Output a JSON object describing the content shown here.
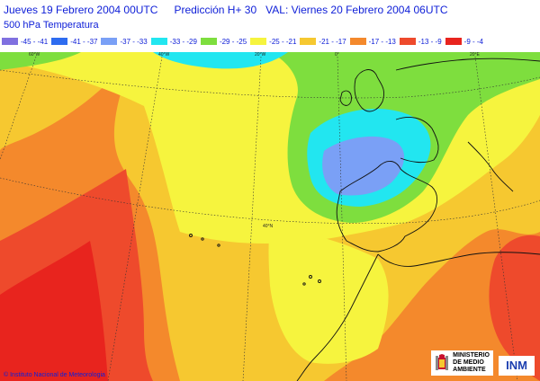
{
  "header": {
    "line1_left": "Jueves 19 Febrero 2004 00UTC",
    "line1_pred": "Predicción H+ 30",
    "line1_val": "VAL: Viernes 20 Febrero 2004 06UTC",
    "subtitle": "500  hPa Temperatura"
  },
  "legend": [
    {
      "label": "-45 - -41",
      "color": "#8070e0"
    },
    {
      "label": "-41 - -37",
      "color": "#2e6cf0"
    },
    {
      "label": "-37 - -33",
      "color": "#7aa0f6"
    },
    {
      "label": "-33 - -29",
      "color": "#22e6f0"
    },
    {
      "label": "-29 - -25",
      "color": "#7ede3e"
    },
    {
      "label": "-25 - -21",
      "color": "#f6f43e"
    },
    {
      "label": "-21 - -17",
      "color": "#f6c830"
    },
    {
      "label": "-17 - -13",
      "color": "#f4892c"
    },
    {
      "label": "-13 - -9",
      "color": "#ee4a2c"
    },
    {
      "label": "-9 - -4",
      "color": "#e8241e"
    }
  ],
  "map": {
    "lon_ticks": [
      "60°W",
      "40°W",
      "20°W",
      "0°",
      "20°E"
    ],
    "lat_label": "40°N"
  },
  "footer": {
    "copyright": "© Instituto Nacional de Meteorologia",
    "ministry": [
      "MINISTERIO",
      "DE MEDIO",
      "AMBIENTE"
    ],
    "inm": "INM"
  }
}
